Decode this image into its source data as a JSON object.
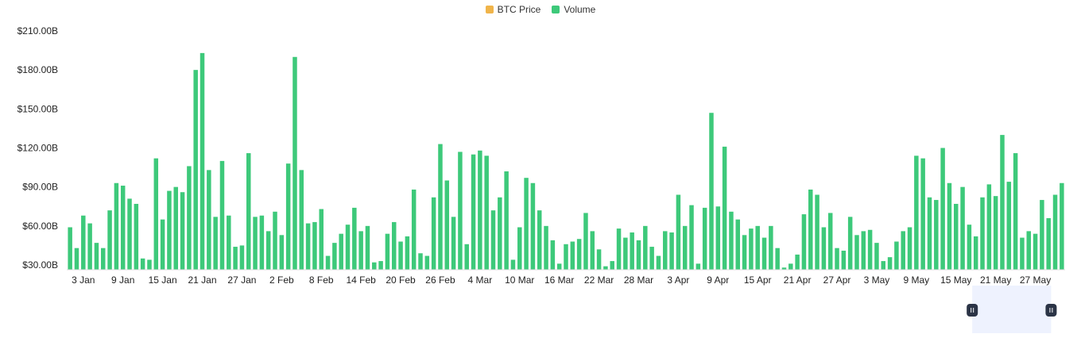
{
  "legend": [
    {
      "label": "BTC Price",
      "color": "#F0B44A"
    },
    {
      "label": "Volume",
      "color": "#3DC97A"
    }
  ],
  "colors": {
    "bar": "#3DC97A",
    "zoom_window": "#EEF2FE",
    "handle": "#2B3446"
  },
  "zoom": {
    "start": 0.907,
    "end": 0.986
  },
  "chart_data": {
    "type": "bar",
    "title": "",
    "xlabel": "",
    "ylabel": "",
    "y_unit": "B",
    "ylim": [
      30,
      210
    ],
    "yticks": [
      "$30.00B",
      "$60.00B",
      "$90.00B",
      "$120.00B",
      "$150.00B",
      "$180.00B",
      "$210.00B"
    ],
    "ytick_values": [
      30,
      60,
      90,
      120,
      150,
      180,
      210
    ],
    "xticks": [
      {
        "label": "3 Jan",
        "index": 2
      },
      {
        "label": "9 Jan",
        "index": 8
      },
      {
        "label": "15 Jan",
        "index": 14
      },
      {
        "label": "21 Jan",
        "index": 20
      },
      {
        "label": "27 Jan",
        "index": 26
      },
      {
        "label": "2 Feb",
        "index": 32
      },
      {
        "label": "8 Feb",
        "index": 38
      },
      {
        "label": "14 Feb",
        "index": 44
      },
      {
        "label": "20 Feb",
        "index": 50
      },
      {
        "label": "26 Feb",
        "index": 56
      },
      {
        "label": "4 Mar",
        "index": 62
      },
      {
        "label": "10 Mar",
        "index": 68
      },
      {
        "label": "16 Mar",
        "index": 74
      },
      {
        "label": "22 Mar",
        "index": 80
      },
      {
        "label": "28 Mar",
        "index": 86
      },
      {
        "label": "3 Apr",
        "index": 92
      },
      {
        "label": "9 Apr",
        "index": 98
      },
      {
        "label": "15 Apr",
        "index": 104
      },
      {
        "label": "21 Apr",
        "index": 110
      },
      {
        "label": "27 Apr",
        "index": 116
      },
      {
        "label": "3 May",
        "index": 122
      },
      {
        "label": "9 May",
        "index": 128
      },
      {
        "label": "15 May",
        "index": 134
      },
      {
        "label": "21 May",
        "index": 140
      },
      {
        "label": "27 May",
        "index": 146
      }
    ],
    "series": [
      {
        "values": [
          59,
          43,
          68,
          62,
          47,
          43,
          72,
          93,
          91,
          81,
          77,
          35,
          34,
          112,
          65,
          87,
          90,
          86,
          106,
          180,
          193,
          103,
          67,
          110,
          68,
          44,
          45,
          116,
          67,
          68,
          56,
          71,
          53,
          108,
          190,
          103,
          62,
          63,
          73,
          37,
          47,
          54,
          61,
          74,
          56,
          60,
          32,
          33,
          54,
          63,
          48,
          52,
          88,
          39,
          37,
          82,
          123,
          95,
          67,
          117,
          46,
          115,
          118,
          114,
          72,
          82,
          102,
          34,
          59,
          97,
          93,
          72,
          60,
          49,
          31,
          46,
          48,
          50,
          70,
          56,
          42,
          29,
          33,
          58,
          51,
          55,
          49,
          60,
          44,
          37,
          56,
          55,
          84,
          60,
          76,
          31,
          74,
          147,
          75,
          121,
          71,
          65,
          53,
          58,
          60,
          51,
          60,
          43,
          28,
          31,
          38,
          69,
          88,
          84,
          59,
          70,
          43,
          41,
          67,
          53,
          56,
          57,
          47,
          33,
          36,
          48,
          56,
          59,
          114,
          112,
          82,
          80,
          120,
          93,
          77,
          90,
          61,
          52,
          82,
          92,
          83,
          130,
          94,
          116,
          51,
          56,
          54,
          80,
          66,
          84,
          93
        ]
      }
    ]
  }
}
